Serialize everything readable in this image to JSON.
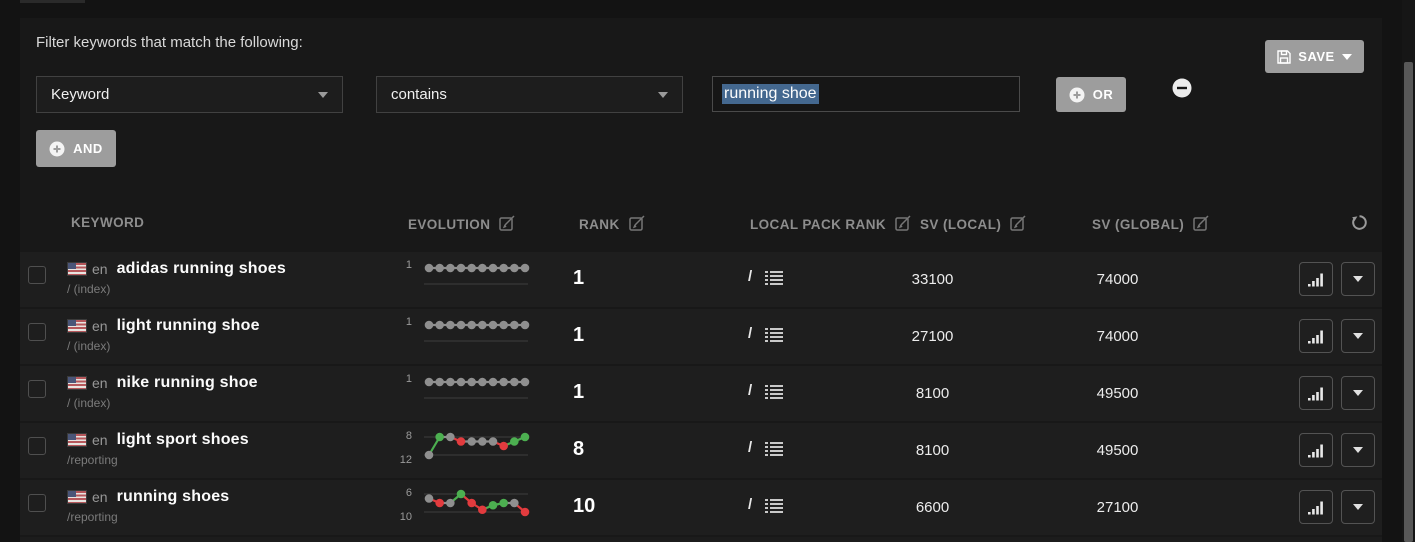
{
  "filter": {
    "title": "Filter keywords that match the following:",
    "field_value": "Keyword",
    "operator_value": "contains",
    "input_value": "running shoe",
    "or_label": "OR",
    "and_label": "AND",
    "save_label": "SAVE"
  },
  "table": {
    "headers": {
      "keyword": "KEYWORD",
      "evolution": "EVOLUTION",
      "rank": "RANK",
      "local_pack_rank": "LOCAL PACK RANK",
      "sv_local": "SV (LOCAL)",
      "sv_global": "SV (GLOBAL)"
    },
    "rows": [
      {
        "lang": "en",
        "keyword": "adidas running shoes",
        "path": "/ (index)",
        "rank": "1",
        "local_pack_rank": "/",
        "sv_local": "33100",
        "sv_global": "74000",
        "evolution": {
          "labels": [
            "1"
          ],
          "axis": [
            1,
            2
          ],
          "points": [
            {
              "v": 1,
              "c": "gray"
            },
            {
              "v": 1,
              "c": "gray"
            },
            {
              "v": 1,
              "c": "gray"
            },
            {
              "v": 1,
              "c": "gray"
            },
            {
              "v": 1,
              "c": "gray"
            },
            {
              "v": 1,
              "c": "gray"
            },
            {
              "v": 1,
              "c": "gray"
            },
            {
              "v": 1,
              "c": "gray"
            },
            {
              "v": 1,
              "c": "gray"
            },
            {
              "v": 1,
              "c": "gray"
            }
          ]
        }
      },
      {
        "lang": "en",
        "keyword": "light running shoe",
        "path": "/ (index)",
        "rank": "1",
        "local_pack_rank": "/",
        "sv_local": "27100",
        "sv_global": "74000",
        "evolution": {
          "labels": [
            "1"
          ],
          "axis": [
            1,
            2
          ],
          "points": [
            {
              "v": 1,
              "c": "gray"
            },
            {
              "v": 1,
              "c": "gray"
            },
            {
              "v": 1,
              "c": "gray"
            },
            {
              "v": 1,
              "c": "gray"
            },
            {
              "v": 1,
              "c": "gray"
            },
            {
              "v": 1,
              "c": "gray"
            },
            {
              "v": 1,
              "c": "gray"
            },
            {
              "v": 1,
              "c": "gray"
            },
            {
              "v": 1,
              "c": "gray"
            },
            {
              "v": 1,
              "c": "gray"
            }
          ]
        }
      },
      {
        "lang": "en",
        "keyword": "nike running shoe",
        "path": "/ (index)",
        "rank": "1",
        "local_pack_rank": "/",
        "sv_local": "8100",
        "sv_global": "49500",
        "evolution": {
          "labels": [
            "1"
          ],
          "axis": [
            1,
            2
          ],
          "points": [
            {
              "v": 1,
              "c": "gray"
            },
            {
              "v": 1,
              "c": "gray"
            },
            {
              "v": 1,
              "c": "gray"
            },
            {
              "v": 1,
              "c": "gray"
            },
            {
              "v": 1,
              "c": "gray"
            },
            {
              "v": 1,
              "c": "gray"
            },
            {
              "v": 1,
              "c": "gray"
            },
            {
              "v": 1,
              "c": "gray"
            },
            {
              "v": 1,
              "c": "gray"
            },
            {
              "v": 1,
              "c": "gray"
            }
          ]
        }
      },
      {
        "lang": "en",
        "keyword": "light sport shoes",
        "path": "/reporting",
        "rank": "8",
        "local_pack_rank": "/",
        "sv_local": "8100",
        "sv_global": "49500",
        "evolution": {
          "labels": [
            "8",
            "12"
          ],
          "axis": [
            8,
            12
          ],
          "points": [
            {
              "v": 12,
              "c": "gray"
            },
            {
              "v": 8,
              "c": "green"
            },
            {
              "v": 8,
              "c": "gray"
            },
            {
              "v": 9,
              "c": "red"
            },
            {
              "v": 9,
              "c": "gray"
            },
            {
              "v": 9,
              "c": "gray"
            },
            {
              "v": 9,
              "c": "gray"
            },
            {
              "v": 10,
              "c": "red"
            },
            {
              "v": 9,
              "c": "green"
            },
            {
              "v": 8,
              "c": "green"
            }
          ]
        }
      },
      {
        "lang": "en",
        "keyword": "running shoes",
        "path": "/reporting",
        "rank": "10",
        "local_pack_rank": "/",
        "sv_local": "6600",
        "sv_global": "27100",
        "evolution": {
          "labels": [
            "6",
            "10"
          ],
          "axis": [
            6,
            10
          ],
          "points": [
            {
              "v": 7,
              "c": "gray"
            },
            {
              "v": 8,
              "c": "red"
            },
            {
              "v": 8,
              "c": "gray"
            },
            {
              "v": 6,
              "c": "green"
            },
            {
              "v": 8,
              "c": "red"
            },
            {
              "v": 9.5,
              "c": "red"
            },
            {
              "v": 8.5,
              "c": "green"
            },
            {
              "v": 8,
              "c": "green"
            },
            {
              "v": 8,
              "c": "gray"
            },
            {
              "v": 10,
              "c": "red"
            }
          ]
        }
      }
    ]
  },
  "colors": {
    "green": "#4caf50",
    "red": "#e23b3e",
    "gray": "#8f8f8f",
    "gridline": "#3f3f3f",
    "selection": "#44688f",
    "button_gray": "#9d9d9d"
  }
}
